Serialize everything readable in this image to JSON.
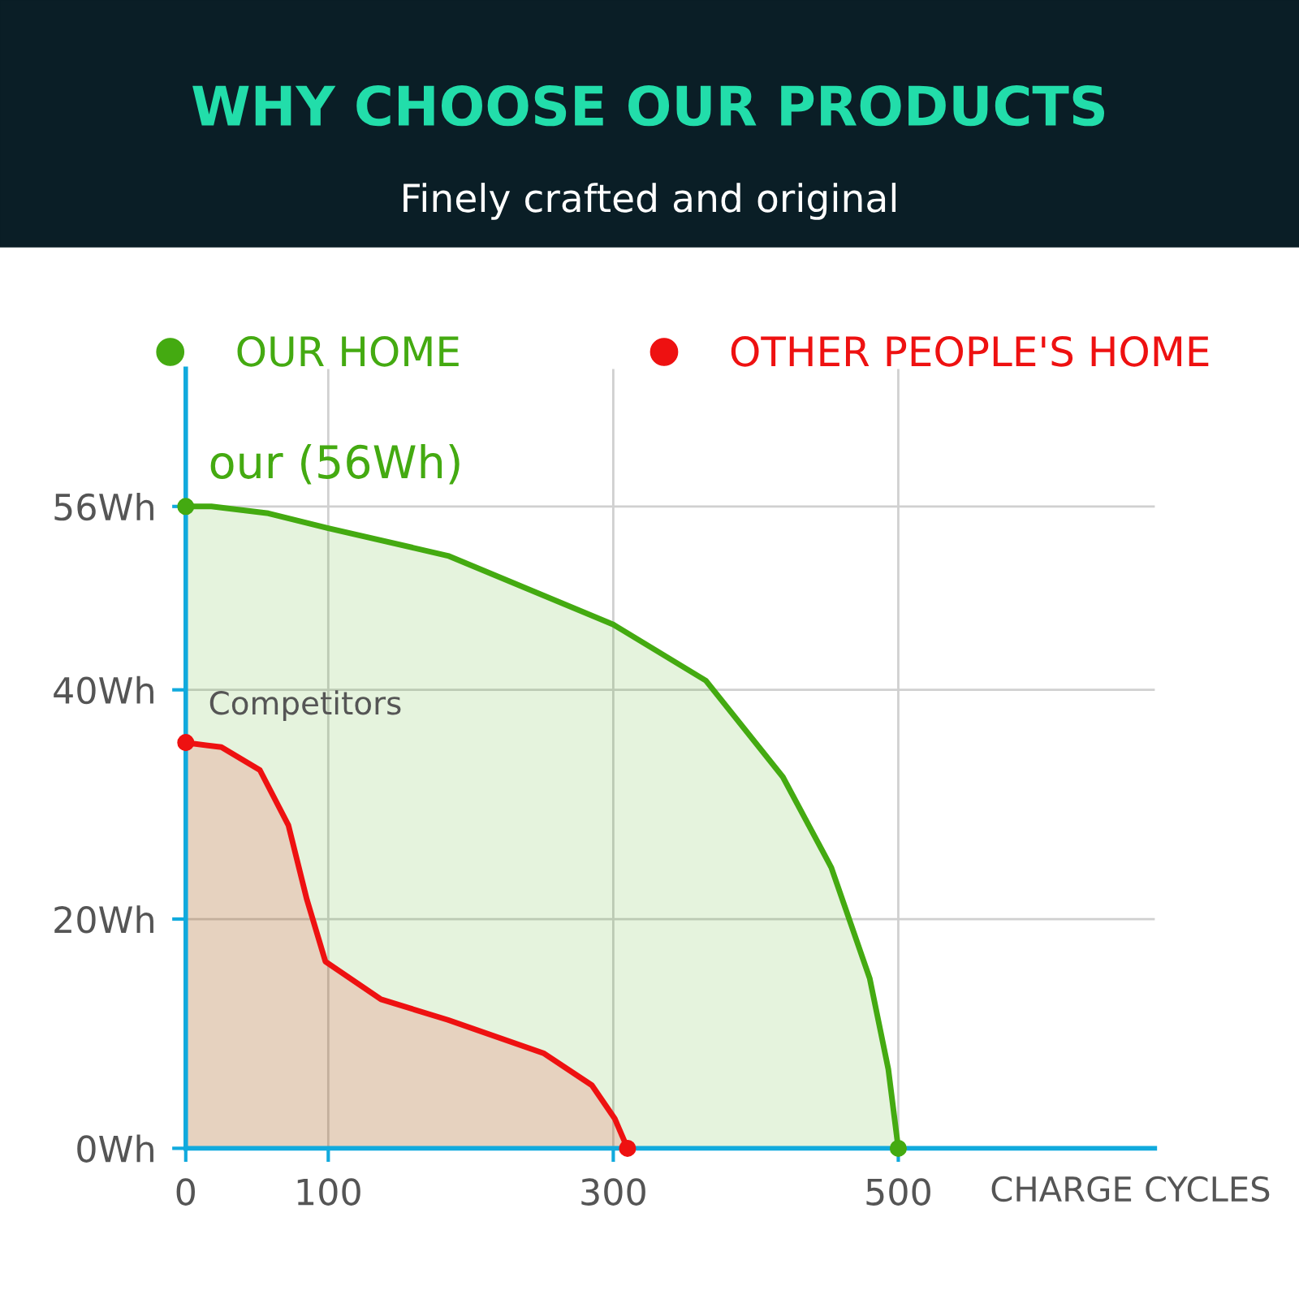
{
  "chart_data": {
    "type": "area",
    "title": "WHY CHOOSE OUR PRODUCTS",
    "subtitle": "Finely crafted and original",
    "xlabel": "CHARGE CYCLES",
    "series": [
      {
        "name": "OUR HOME",
        "color": "#44aa11",
        "x": [
          0,
          18,
          58,
          100,
          184,
          300,
          365,
          419,
          453,
          480,
          493,
          500
        ],
        "values": [
          56,
          56,
          55.4,
          54.1,
          51.7,
          45.7,
          40.8,
          32.4,
          24.5,
          14.8,
          6.9,
          0
        ]
      },
      {
        "name": "OTHER PEOPLE'S HOME",
        "color": "#ee1111",
        "x": [
          0,
          25,
          52,
          72,
          85,
          98,
          137,
          184,
          251,
          285,
          301,
          310
        ],
        "values": [
          35.4,
          35,
          33,
          28.2,
          21.7,
          16.3,
          13,
          11.2,
          8.3,
          5.5,
          2.6,
          0
        ]
      }
    ],
    "xlim": [
      0,
      680
    ],
    "xticks": [
      0,
      100,
      300,
      500
    ],
    "ylim": [
      0,
      68
    ],
    "yticks": [
      {
        "value": 0,
        "label": "0Wh"
      },
      {
        "value": 20,
        "label": "20Wh"
      },
      {
        "value": 40,
        "label": "40Wh"
      },
      {
        "value": 56,
        "label": "56Wh"
      }
    ],
    "annotations": [
      {
        "text": "our (56Wh)",
        "x": 0,
        "y": 56
      },
      {
        "text": "Competitors",
        "x": 0,
        "y": 35.4
      }
    ],
    "grid": true,
    "legend": "top",
    "line_style": "solid"
  }
}
